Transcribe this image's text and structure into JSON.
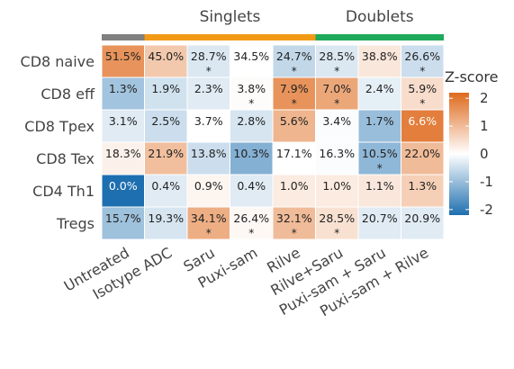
{
  "chart_data": {
    "type": "heatmap",
    "column_groups": [
      {
        "label": "",
        "color": "#808080",
        "columns": [
          "Untreated"
        ]
      },
      {
        "label": "Singlets",
        "color": "#F29A16",
        "columns": [
          "Isotype ADC",
          "Saru",
          "Puxi-sam",
          "Rilve"
        ]
      },
      {
        "label": "Doublets",
        "color": "#1FA95B",
        "columns": [
          "Rilve+Saru",
          "Puxi-sam + Saru",
          "Puxi-sam + Rilve"
        ]
      }
    ],
    "columns": [
      "Untreated",
      "Isotype ADC",
      "Saru",
      "Puxi-sam",
      "Rilve",
      "Rilve+Saru",
      "Puxi-sam + Saru",
      "Puxi-sam + Rilve"
    ],
    "rows": [
      "CD8 naive",
      "CD8 eff",
      "CD8 Tpex",
      "CD8 Tex",
      "CD4 Th1",
      "Tregs"
    ],
    "cells": [
      [
        {
          "label": "51.5%",
          "z": 1.6,
          "star": false
        },
        {
          "label": "45.0%",
          "z": 0.8,
          "star": false
        },
        {
          "label": "28.7%",
          "z": -0.35,
          "star": true
        },
        {
          "label": "34.5%",
          "z": 0.0,
          "star": false
        },
        {
          "label": "24.7%",
          "z": -0.6,
          "star": true
        },
        {
          "label": "28.5%",
          "z": -0.35,
          "star": true
        },
        {
          "label": "38.8%",
          "z": 0.35,
          "star": false
        },
        {
          "label": "26.6%",
          "z": -0.5,
          "star": true
        }
      ],
      [
        {
          "label": "1.3%",
          "z": -0.9,
          "star": false
        },
        {
          "label": "1.9%",
          "z": -0.45,
          "star": false
        },
        {
          "label": "2.3%",
          "z": -0.3,
          "star": false
        },
        {
          "label": "3.8%",
          "z": 0.05,
          "star": true
        },
        {
          "label": "7.9%",
          "z": 1.6,
          "star": true
        },
        {
          "label": "7.0%",
          "z": 1.3,
          "star": true
        },
        {
          "label": "2.4%",
          "z": -0.25,
          "star": false
        },
        {
          "label": "5.9%",
          "z": 0.5,
          "star": true
        }
      ],
      [
        {
          "label": "3.1%",
          "z": -0.3,
          "star": false
        },
        {
          "label": "2.5%",
          "z": -0.5,
          "star": false
        },
        {
          "label": "3.7%",
          "z": 0.0,
          "star": false
        },
        {
          "label": "2.8%",
          "z": -0.4,
          "star": false
        },
        {
          "label": "5.6%",
          "z": 1.1,
          "star": false
        },
        {
          "label": "3.4%",
          "z": -0.05,
          "star": false
        },
        {
          "label": "1.7%",
          "z": -1.0,
          "star": false
        },
        {
          "label": "6.6%",
          "z": 1.9,
          "star": false
        }
      ],
      [
        {
          "label": "18.3%",
          "z": 0.2,
          "star": false
        },
        {
          "label": "21.9%",
          "z": 0.95,
          "star": false
        },
        {
          "label": "13.8%",
          "z": -0.5,
          "star": false
        },
        {
          "label": "10.3%",
          "z": -1.2,
          "star": false
        },
        {
          "label": "17.1%",
          "z": 0.0,
          "star": false
        },
        {
          "label": "16.3%",
          "z": -0.05,
          "star": false
        },
        {
          "label": "10.5%",
          "z": -1.1,
          "star": true
        },
        {
          "label": "22.0%",
          "z": 1.0,
          "star": false
        }
      ],
      [
        {
          "label": "0.0%",
          "z": -2.2,
          "star": false
        },
        {
          "label": "0.4%",
          "z": -0.3,
          "star": false
        },
        {
          "label": "0.9%",
          "z": 0.15,
          "star": false
        },
        {
          "label": "0.4%",
          "z": -0.3,
          "star": false
        },
        {
          "label": "1.0%",
          "z": 0.3,
          "star": false
        },
        {
          "label": "1.0%",
          "z": 0.3,
          "star": false
        },
        {
          "label": "1.1%",
          "z": 0.35,
          "star": false
        },
        {
          "label": "1.3%",
          "z": 0.7,
          "star": false
        }
      ],
      [
        {
          "label": "15.7%",
          "z": -0.95,
          "star": false
        },
        {
          "label": "19.3%",
          "z": -0.4,
          "star": false
        },
        {
          "label": "34.1%",
          "z": 1.2,
          "star": true
        },
        {
          "label": "26.4%",
          "z": 0.1,
          "star": true
        },
        {
          "label": "32.1%",
          "z": 1.0,
          "star": true
        },
        {
          "label": "28.5%",
          "z": 0.45,
          "star": true
        },
        {
          "label": "20.7%",
          "z": -0.3,
          "star": false
        },
        {
          "label": "20.9%",
          "z": -0.3,
          "star": false
        }
      ]
    ],
    "star_symbol": "*",
    "legend": {
      "title": "Z-score",
      "ticks": [
        "2",
        "1",
        "0",
        "-1",
        "-2"
      ],
      "tick_values": [
        2,
        1,
        0,
        -1,
        -2
      ],
      "range": [
        -2.2,
        2.2
      ],
      "colors": {
        "low": "#1E6FAF",
        "mid": "#FFFFFF",
        "high": "#DE6A1D"
      },
      "placement": "right"
    }
  }
}
